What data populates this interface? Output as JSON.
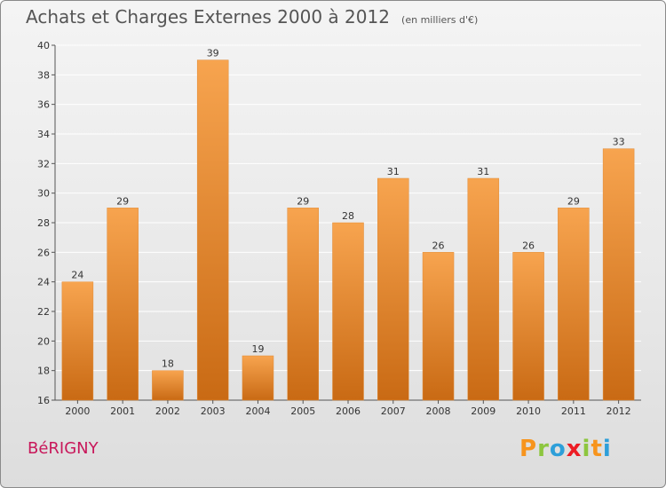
{
  "header": {
    "title": "Achats et Charges Externes 2000 à 2012",
    "subtitle": "(en milliers d'€)"
  },
  "footer": {
    "commune": "BéRIGNY",
    "logo_letters": [
      "P",
      "r",
      "o",
      "x",
      "i",
      "t",
      "i"
    ],
    "logo_colors": [
      "#f7941d",
      "#8dc63f",
      "#2e9fd9",
      "#ed1c24",
      "#8dc63f",
      "#f7941d",
      "#2e9fd9"
    ]
  },
  "colors": {
    "bar_top": "#f7a44f",
    "bar_bottom": "#c96a14",
    "grid": "#ffffff",
    "axis": "#555555"
  },
  "chart_data": {
    "type": "bar",
    "title": "Achats et Charges Externes 2000 à 2012",
    "subtitle": "(en milliers d'€)",
    "xlabel": "",
    "ylabel": "",
    "categories": [
      "2000",
      "2001",
      "2002",
      "2003",
      "2004",
      "2005",
      "2006",
      "2007",
      "2008",
      "2009",
      "2010",
      "2011",
      "2012"
    ],
    "values": [
      24,
      29,
      18,
      39,
      19,
      29,
      28,
      31,
      26,
      31,
      26,
      29,
      33
    ],
    "ylim": [
      16,
      40
    ],
    "yticks": [
      16,
      18,
      20,
      22,
      24,
      26,
      28,
      30,
      32,
      34,
      36,
      38,
      40
    ],
    "grid": true,
    "data_labels": true
  }
}
